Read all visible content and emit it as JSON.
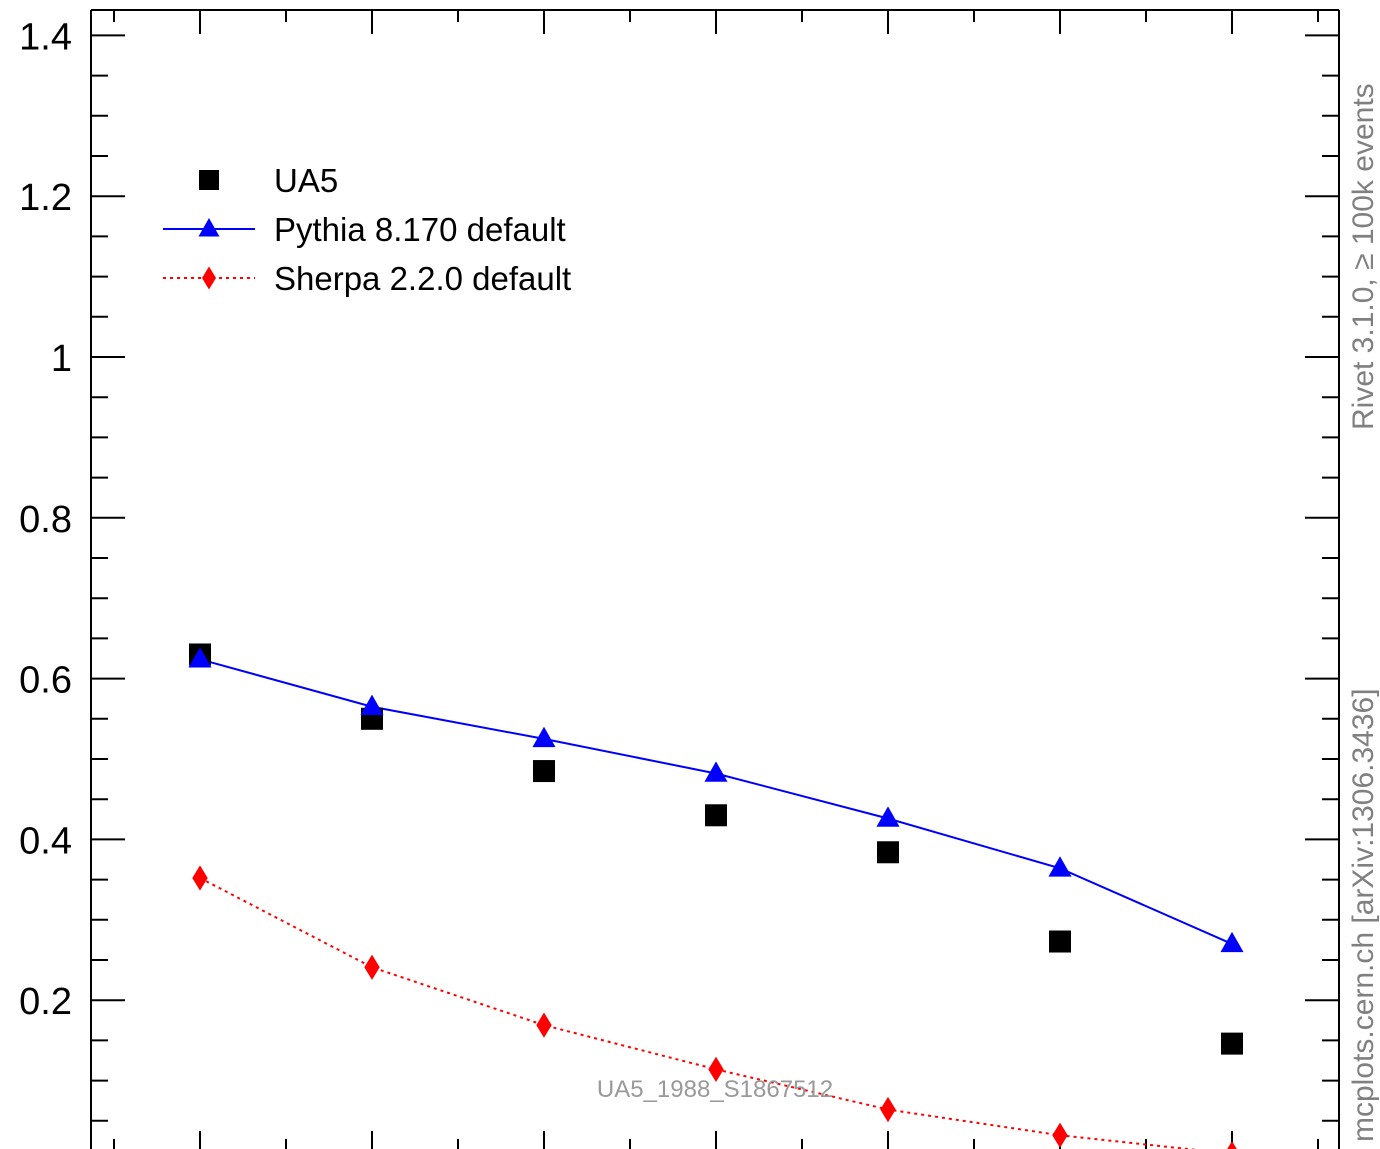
{
  "chart_data": {
    "type": "scatter",
    "title": "",
    "xlabel": "",
    "ylabel": "",
    "x": [
      1,
      2,
      3,
      4,
      5,
      6,
      7
    ],
    "ylim": [
      0,
      1.4
    ],
    "yticks": [
      "1.4",
      "1.2",
      "1",
      "0.8",
      "0.6",
      "0.4",
      "0.2"
    ],
    "legend_position": "top-left",
    "series": [
      {
        "name": "UA5",
        "marker": "square",
        "color": "#000000",
        "line": "none",
        "values": [
          0.63,
          0.55,
          0.485,
          0.43,
          0.384,
          0.273,
          0.146
        ]
      },
      {
        "name": "Pythia 8.170 default",
        "marker": "triangle",
        "color": "#0000ff",
        "line": "solid",
        "values": [
          0.624,
          0.565,
          0.525,
          0.482,
          0.426,
          0.364,
          0.27
        ]
      },
      {
        "name": "Sherpa 2.2.0 default",
        "marker": "diamond",
        "color": "#ff0000",
        "line": "dotted",
        "values": [
          0.352,
          0.241,
          0.169,
          0.114,
          0.064,
          0.032,
          0.009
        ]
      }
    ]
  },
  "annotations": {
    "rivet": "Rivet 3.1.0, ≥ 100k events",
    "mcplots": "mcplots.cern.ch [arXiv:1306.3436]",
    "analysis": "UA5_1988_S1867512"
  }
}
